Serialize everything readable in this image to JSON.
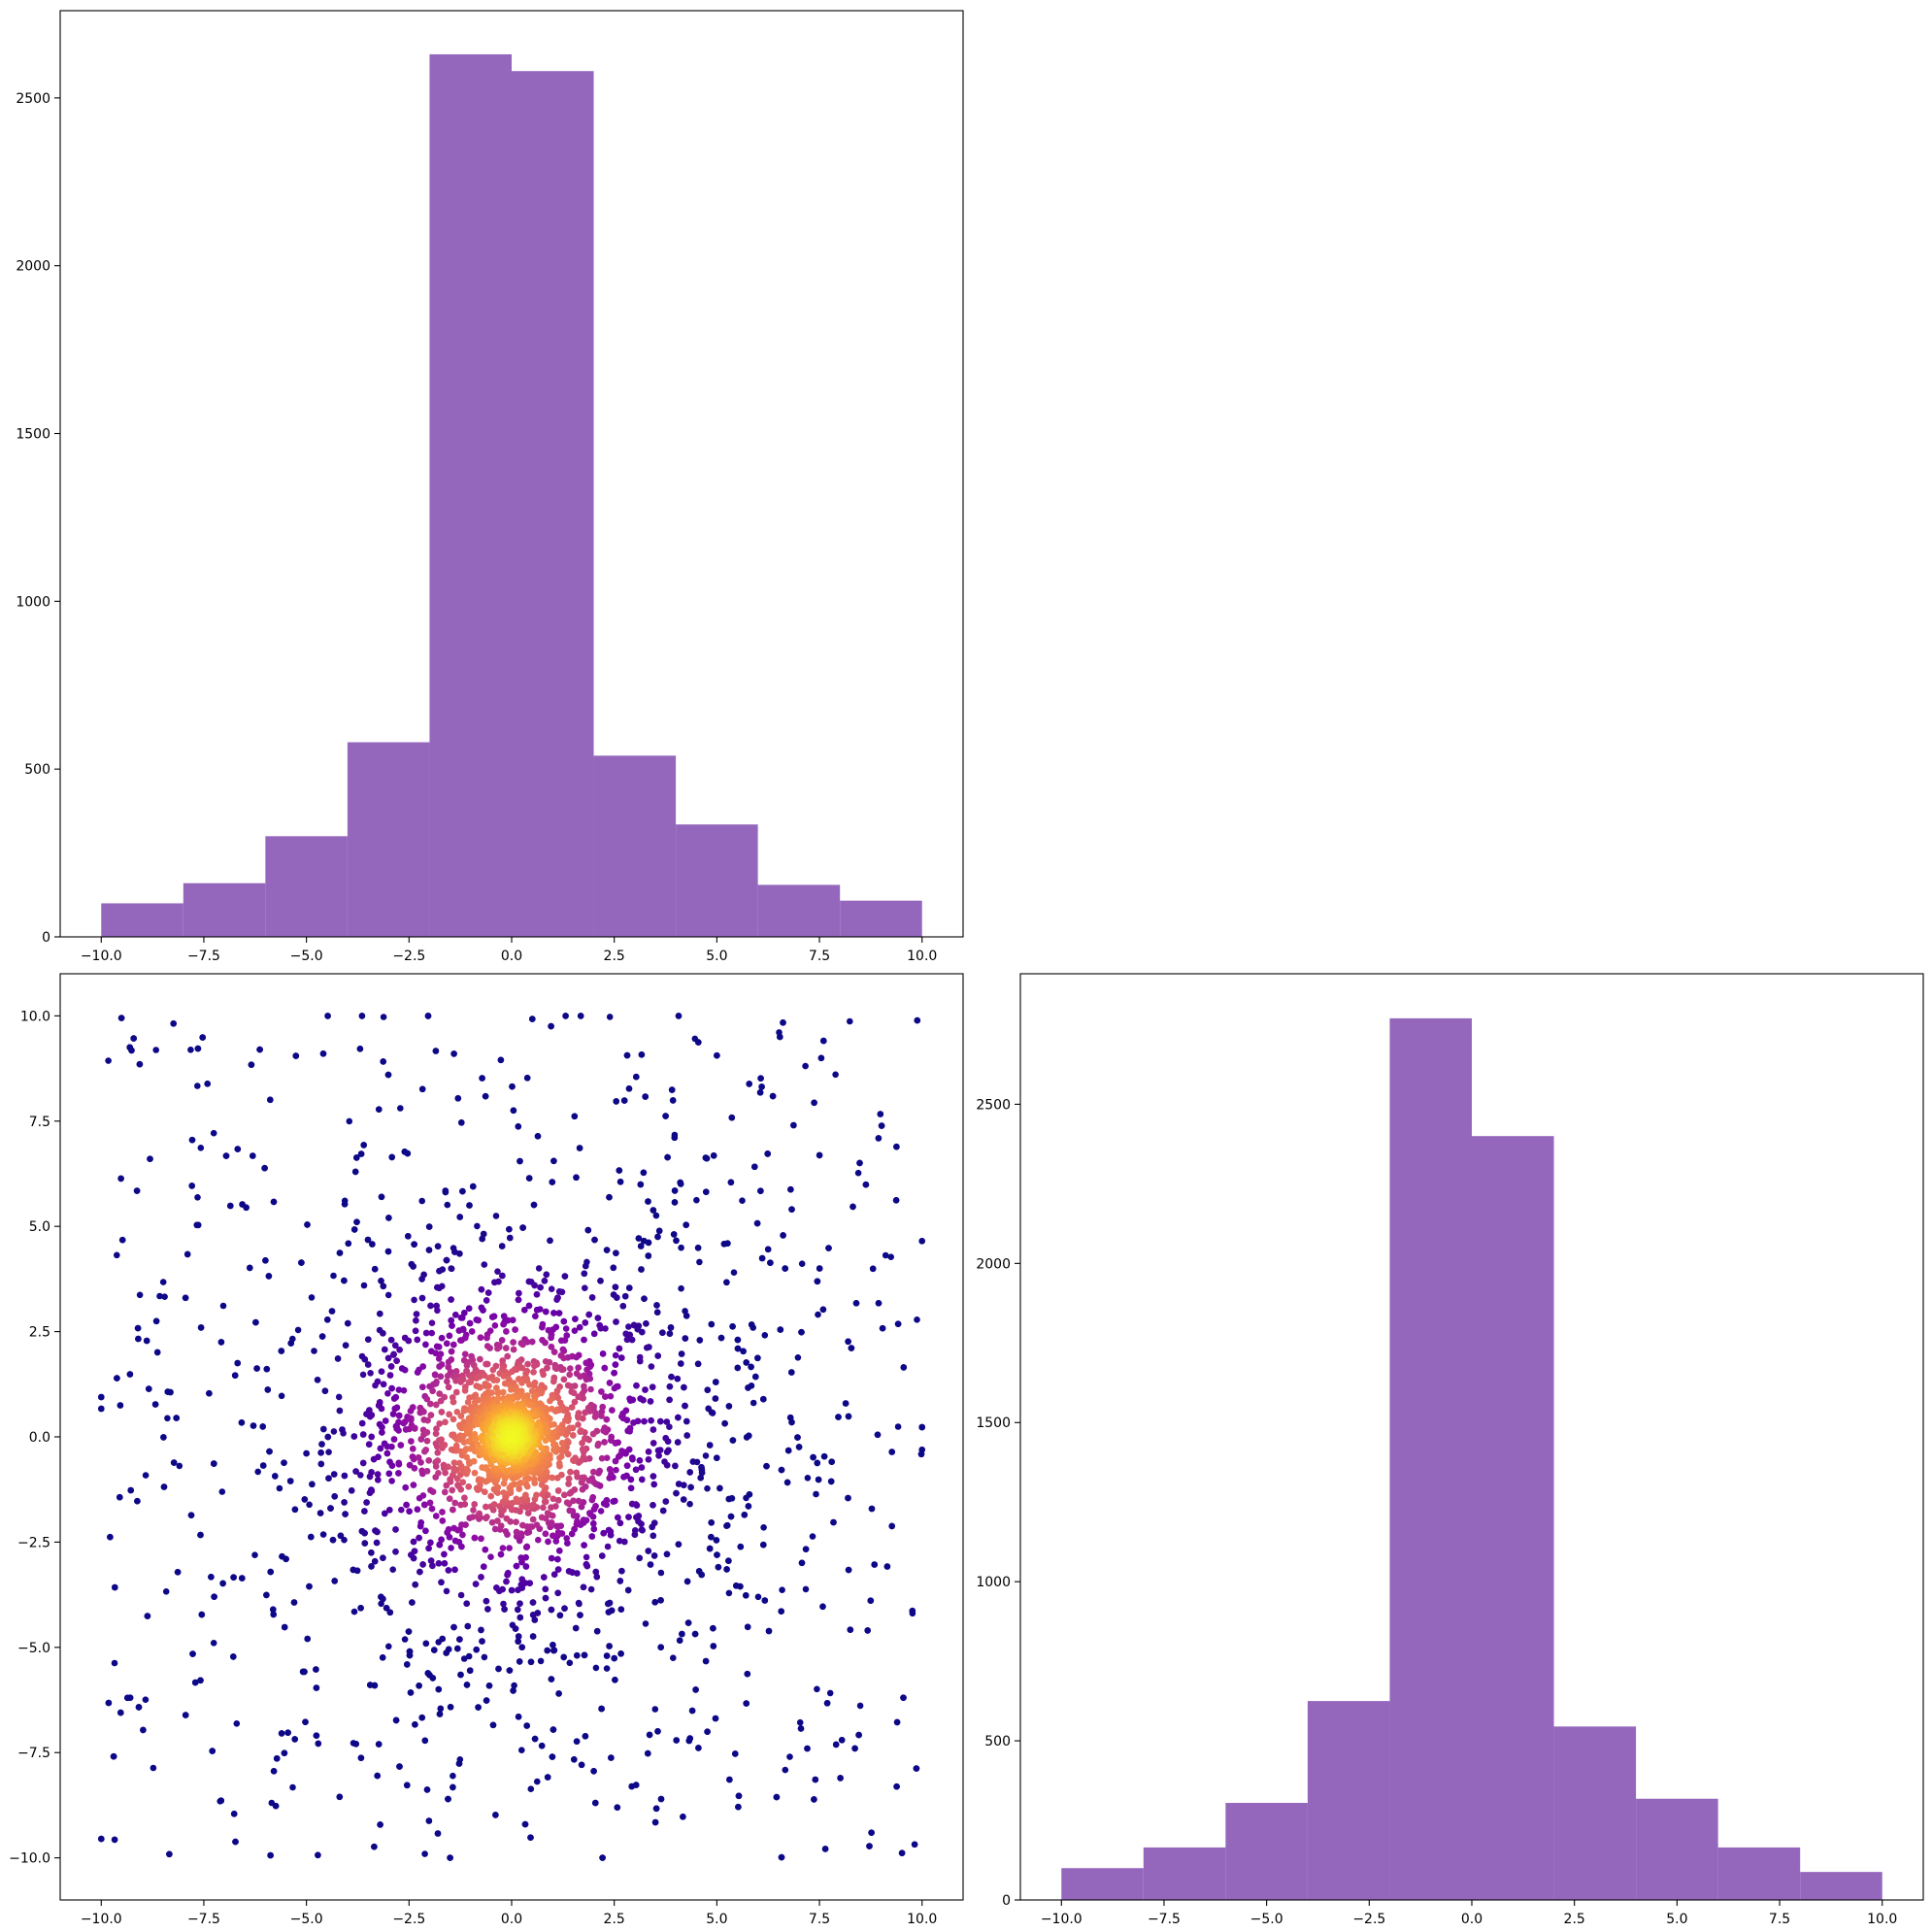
{
  "chart_data": [
    {
      "id": "hist_x",
      "type": "bar",
      "title": "",
      "xlabel": "",
      "ylabel": "",
      "bin_edges": [
        -10,
        -8,
        -6,
        -4,
        -2,
        0,
        2,
        4,
        6,
        8,
        10
      ],
      "values": [
        100,
        160,
        300,
        580,
        2630,
        2580,
        540,
        335,
        155,
        108
      ],
      "xlim": [
        -11,
        11
      ],
      "ylim": [
        0,
        2760
      ],
      "xticks": [
        -10.0,
        -7.5,
        -5.0,
        -2.5,
        0.0,
        2.5,
        5.0,
        7.5,
        10.0
      ],
      "xtick_labels": [
        "−10.0",
        "−7.5",
        "−5.0",
        "−2.5",
        "0.0",
        "2.5",
        "5.0",
        "7.5",
        "10.0"
      ],
      "yticks": [
        0,
        500,
        1000,
        1500,
        2000,
        2500
      ],
      "ytick_labels": [
        "0",
        "500",
        "1000",
        "1500",
        "2000",
        "2500"
      ],
      "color": "#9467bd",
      "grid": false
    },
    {
      "id": "hist_y",
      "type": "bar",
      "title": "",
      "xlabel": "",
      "ylabel": "",
      "bin_edges": [
        -10,
        -8,
        -6,
        -4,
        -2,
        0,
        2,
        4,
        6,
        8,
        10
      ],
      "values": [
        100,
        165,
        305,
        625,
        2770,
        2400,
        545,
        318,
        165,
        88
      ],
      "xlim": [
        -11,
        11
      ],
      "ylim": [
        0,
        2910
      ],
      "xticks": [
        -10.0,
        -7.5,
        -5.0,
        -2.5,
        0.0,
        2.5,
        5.0,
        7.5,
        10.0
      ],
      "xtick_labels": [
        "−10.0",
        "−7.5",
        "−5.0",
        "−2.5",
        "0.0",
        "2.5",
        "5.0",
        "7.5",
        "10.0"
      ],
      "yticks": [
        0,
        500,
        1000,
        1500,
        2000,
        2500
      ],
      "ytick_labels": [
        "0",
        "500",
        "1000",
        "1500",
        "2000",
        "2500"
      ],
      "color": "#9467bd",
      "grid": false
    },
    {
      "id": "density_scatter",
      "type": "scatter",
      "title": "",
      "xlabel": "",
      "ylabel": "",
      "xlim": [
        -11,
        11
      ],
      "ylim": [
        -11,
        11
      ],
      "xticks": [
        -10.0,
        -7.5,
        -5.0,
        -2.5,
        0.0,
        2.5,
        5.0,
        7.5,
        10.0
      ],
      "xtick_labels": [
        "−10.0",
        "−7.5",
        "−5.0",
        "−2.5",
        "0.0",
        "2.5",
        "5.0",
        "7.5",
        "10.0"
      ],
      "yticks": [
        -10.0,
        -7.5,
        -5.0,
        -2.5,
        0.0,
        2.5,
        5.0,
        7.5,
        10.0
      ],
      "ytick_labels": [
        "−10.0",
        "−7.5",
        "−5.0",
        "−2.5",
        "0.0",
        "2.5",
        "5.0",
        "7.5",
        "10.0"
      ],
      "colormap": "plasma",
      "point_count": 5000,
      "color_by": "density",
      "distribution": "concentrated around (0, 0), uniform scatter out to ±10",
      "grid": false
    }
  ]
}
